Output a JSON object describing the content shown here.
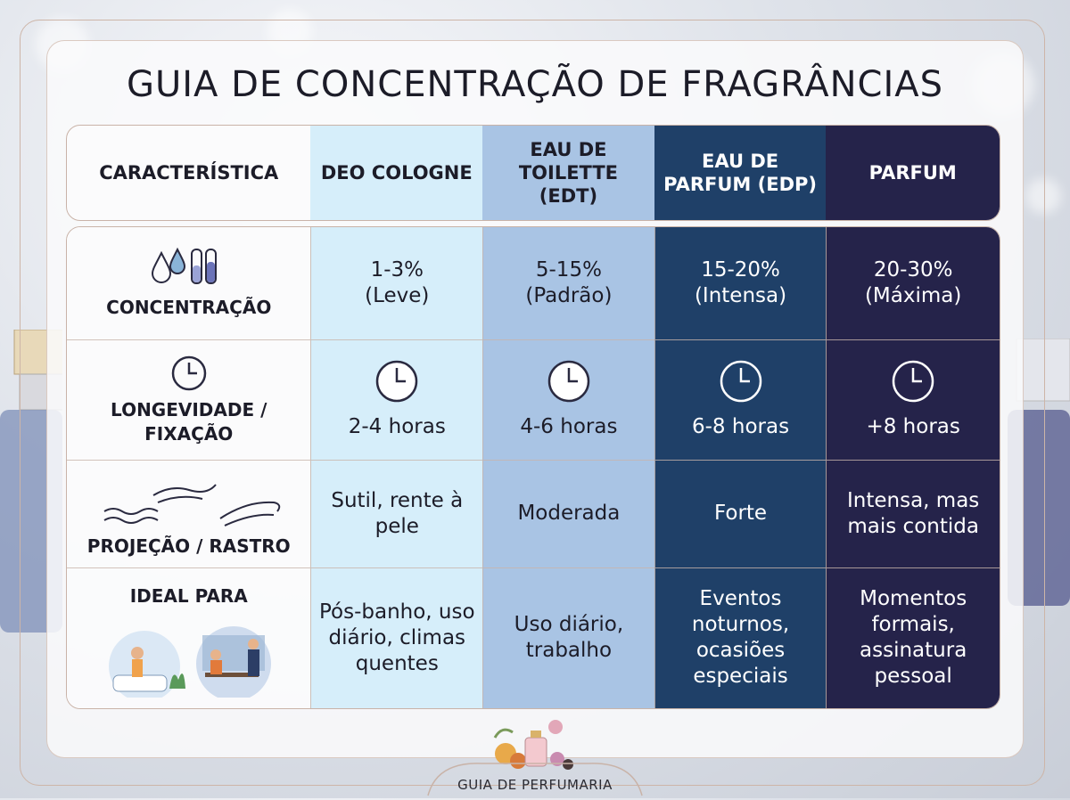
{
  "title": "GUIA DE CONCENTRAÇÃO DE FRAGRÂNCIAS",
  "header": {
    "feature": "CARACTERÍSTICA",
    "columns": [
      "DEO COLOGNE",
      "EAU DE TOILETTE (EDT)",
      "EAU DE PARFUM (EDP)",
      "PARFUM"
    ]
  },
  "rows": [
    {
      "label": "CONCENTRAÇÃO",
      "icon": "droplets-and-test-tubes-icon",
      "values": [
        [
          "1-3%",
          "(Leve)"
        ],
        [
          "5-15%",
          "(Padrão)"
        ],
        [
          "15-20%",
          "(Intensa)"
        ],
        [
          "20-30%",
          "(Máxima)"
        ]
      ]
    },
    {
      "label": "LONGEVIDADE / FIXAÇÃO",
      "icon": "clock-icon",
      "values": [
        "2-4 horas",
        "4-6 horas",
        "6-8 horas",
        "+8 horas"
      ]
    },
    {
      "label": "PROJEÇÃO / RASTRO",
      "icon": "wind-waves-icon",
      "values": [
        "Sutil, rente à pele",
        "Moderada",
        "Forte",
        "Intensa, mas mais contida"
      ]
    },
    {
      "label": "IDEAL PARA",
      "icon": "bathroom-and-office-illustration",
      "values": [
        "Pós-banho, uso diário, climas quentes",
        "Uso diário, trabalho",
        "Eventos noturnos, ocasiões especiais",
        "Momentos formais, assinatura pessoal"
      ]
    }
  ],
  "footer": "GUIA DE PERFUMARIA",
  "colors": {
    "deo": "#d6eefa",
    "edt": "#a9c4e4",
    "edp": "#1f4068",
    "parfum": "#25234a",
    "border": "#c9b3a8"
  }
}
